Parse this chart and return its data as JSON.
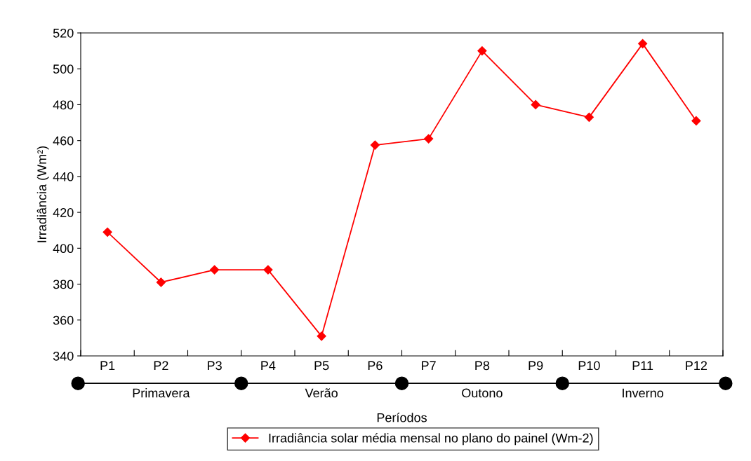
{
  "chart_data": {
    "type": "line",
    "xlabel": "Períodos",
    "ylabel": "Irradiância (Wm²)",
    "categories": [
      "P1",
      "P2",
      "P3",
      "P4",
      "P5",
      "P6",
      "P7",
      "P8",
      "P9",
      "P10",
      "P11",
      "P12"
    ],
    "series": [
      {
        "name": "Irradiância solar média mensal no plano do painel (Wm-2)",
        "color": "#ff0000",
        "values": [
          409,
          381,
          388,
          388,
          351,
          457.5,
          461,
          510,
          480,
          473,
          514,
          471
        ]
      }
    ],
    "ylim": [
      340,
      520
    ],
    "yticks": [
      340,
      360,
      380,
      400,
      420,
      440,
      460,
      480,
      500,
      520
    ],
    "annotations": [
      "Primavera",
      "Verão",
      "Outono",
      "Inverno"
    ],
    "marker": "diamond",
    "line_style": "solid",
    "grid": false,
    "legend": "bottom"
  }
}
